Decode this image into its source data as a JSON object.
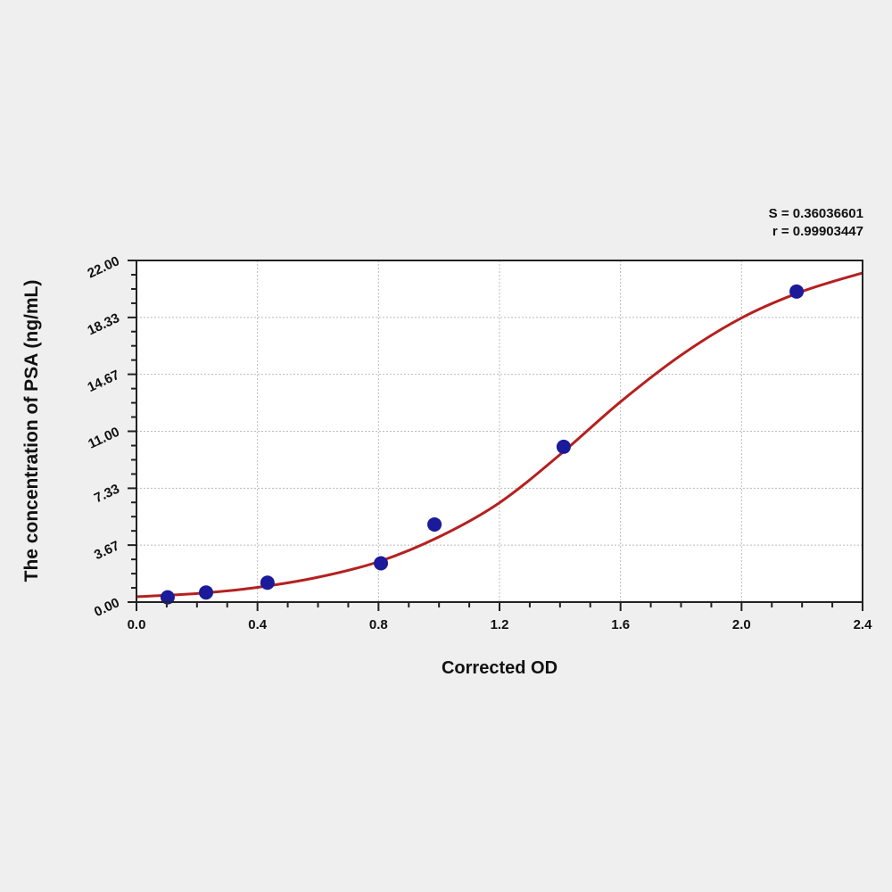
{
  "chart_data": {
    "type": "scatter",
    "title": "",
    "xlabel": "Corrected OD",
    "ylabel": "The concentration of PSA (ng/mL)",
    "xlim": [
      0,
      2.4
    ],
    "ylim": [
      0,
      22
    ],
    "x_ticks": [
      "0.0",
      "0.4",
      "0.8",
      "1.2",
      "1.6",
      "2.0",
      "2.4"
    ],
    "x_tick_values": [
      0,
      0.4,
      0.8,
      1.2,
      1.6,
      2.0,
      2.4
    ],
    "y_ticks": [
      "0.00",
      "3.67",
      "7.33",
      "11.00",
      "14.67",
      "18.33",
      "22.00"
    ],
    "y_tick_values": [
      0,
      3.67,
      7.33,
      11.0,
      14.67,
      18.33,
      22.0
    ],
    "grid": true,
    "annotations": {
      "s_value": "S = 0.36036601",
      "r_value": "r = 0.99903447"
    },
    "points": {
      "x": [
        0.103,
        0.23,
        0.433,
        0.808,
        0.985,
        1.412,
        2.182
      ],
      "y": [
        0.31,
        0.62,
        1.25,
        2.5,
        5.0,
        10.0,
        20.0
      ],
      "color": "#1a1a9a"
    },
    "fit_curve": {
      "x": [
        0,
        0.2,
        0.4,
        0.6,
        0.8,
        1.0,
        1.2,
        1.4,
        1.6,
        1.8,
        2.0,
        2.2,
        2.4
      ],
      "y": [
        0.35,
        0.55,
        0.95,
        1.6,
        2.6,
        4.2,
        6.4,
        9.5,
        12.9,
        15.9,
        18.3,
        20.0,
        21.2
      ],
      "color": "#b52020"
    }
  }
}
